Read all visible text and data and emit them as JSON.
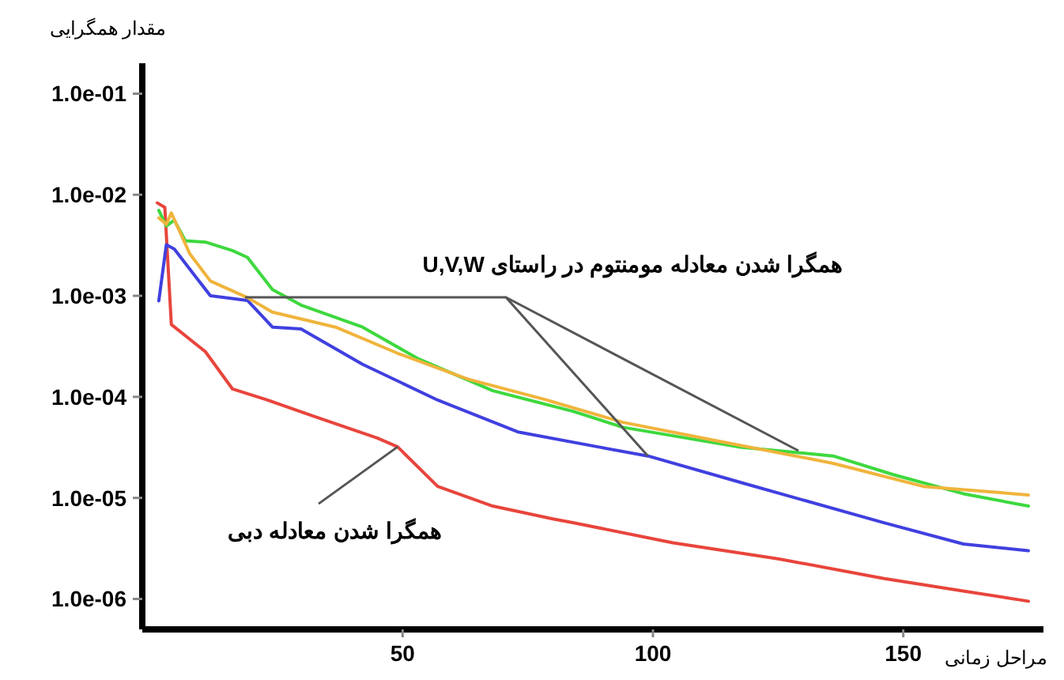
{
  "chart_data": {
    "type": "line",
    "xlabel": "مراحل زمانی",
    "ylabel": "مقدار همگرایی",
    "log": "y",
    "xlim": [
      -2,
      178
    ],
    "xticks": [
      50,
      100,
      150
    ],
    "ylim": [
      5e-07,
      0.2
    ],
    "yticks": [
      {
        "value": 0.1,
        "label": "1.0e-01"
      },
      {
        "value": 0.01,
        "label": "1.0e-02"
      },
      {
        "value": 0.001,
        "label": "1.0e-03"
      },
      {
        "value": 0.0001,
        "label": "1.0e-04"
      },
      {
        "value": 1e-05,
        "label": "1.0e-05"
      },
      {
        "value": 1e-06,
        "label": "1.0e-06"
      }
    ],
    "grid": false,
    "line_style": "solid",
    "marker": "none",
    "series": [
      {
        "color": "#e8453c",
        "x": [
          1,
          2.5,
          3.8,
          10.6,
          16,
          23,
          32,
          45,
          49,
          57,
          68,
          80,
          84,
          104,
          125,
          146,
          162,
          175
        ],
        "values": [
          0.0083,
          0.0075,
          0.00052,
          0.00028,
          0.00012,
          9.3e-05,
          6.5e-05,
          3.9e-05,
          3.2e-05,
          1.3e-05,
          8.3e-06,
          6.2e-06,
          5.7e-06,
          3.6e-06,
          2.5e-06,
          1.6e-06,
          1.2e-06,
          9.5e-07
        ]
      },
      {
        "color": "#4040e0",
        "x": [
          1.3,
          2.8,
          4.4,
          11.6,
          19,
          24,
          29.7,
          42,
          57,
          73,
          89,
          99,
          118,
          146,
          162,
          175
        ],
        "values": [
          0.00089,
          0.0032,
          0.0029,
          0.001,
          0.0009,
          0.00049,
          0.00047,
          0.00021,
          9.3e-05,
          4.5e-05,
          3.2e-05,
          2.6e-05,
          1.4e-05,
          5.7e-06,
          3.5e-06,
          3e-06
        ]
      },
      {
        "color": "#3ed83e",
        "x": [
          1.3,
          2.8,
          4.4,
          6.6,
          10.6,
          16,
          19,
          24,
          29.7,
          42,
          53,
          68,
          84,
          94,
          117,
          136,
          148,
          162,
          175
        ],
        "values": [
          0.007,
          0.0049,
          0.0056,
          0.0035,
          0.0034,
          0.0028,
          0.0024,
          0.00115,
          0.00081,
          0.00049,
          0.00024,
          0.000115,
          7.2e-05,
          5e-05,
          3.2e-05,
          2.6e-05,
          1.7e-05,
          1.1e-05,
          8.3e-06
        ]
      },
      {
        "color": "#f0b43c",
        "x": [
          1.3,
          2.8,
          3.8,
          7.5,
          11.6,
          19,
          24,
          36.6,
          49,
          63,
          78.8,
          94,
          115,
          136,
          154,
          175
        ],
        "values": [
          0.0059,
          0.0051,
          0.0066,
          0.0026,
          0.0014,
          0.00096,
          0.00069,
          0.00049,
          0.00027,
          0.00015,
          9.3e-05,
          5.6e-05,
          3.5e-05,
          2.2e-05,
          1.3e-05,
          1.07e-05
        ]
      }
    ],
    "annotations": [
      {
        "text": "همگرا شدن معادله مومنتوم در راستای U,V,W",
        "x": 99,
        "y": 2.6e-05
      },
      {
        "text": "همگرا شدن معادله دبی",
        "x": 49,
        "y": 3.2e-05
      }
    ]
  }
}
